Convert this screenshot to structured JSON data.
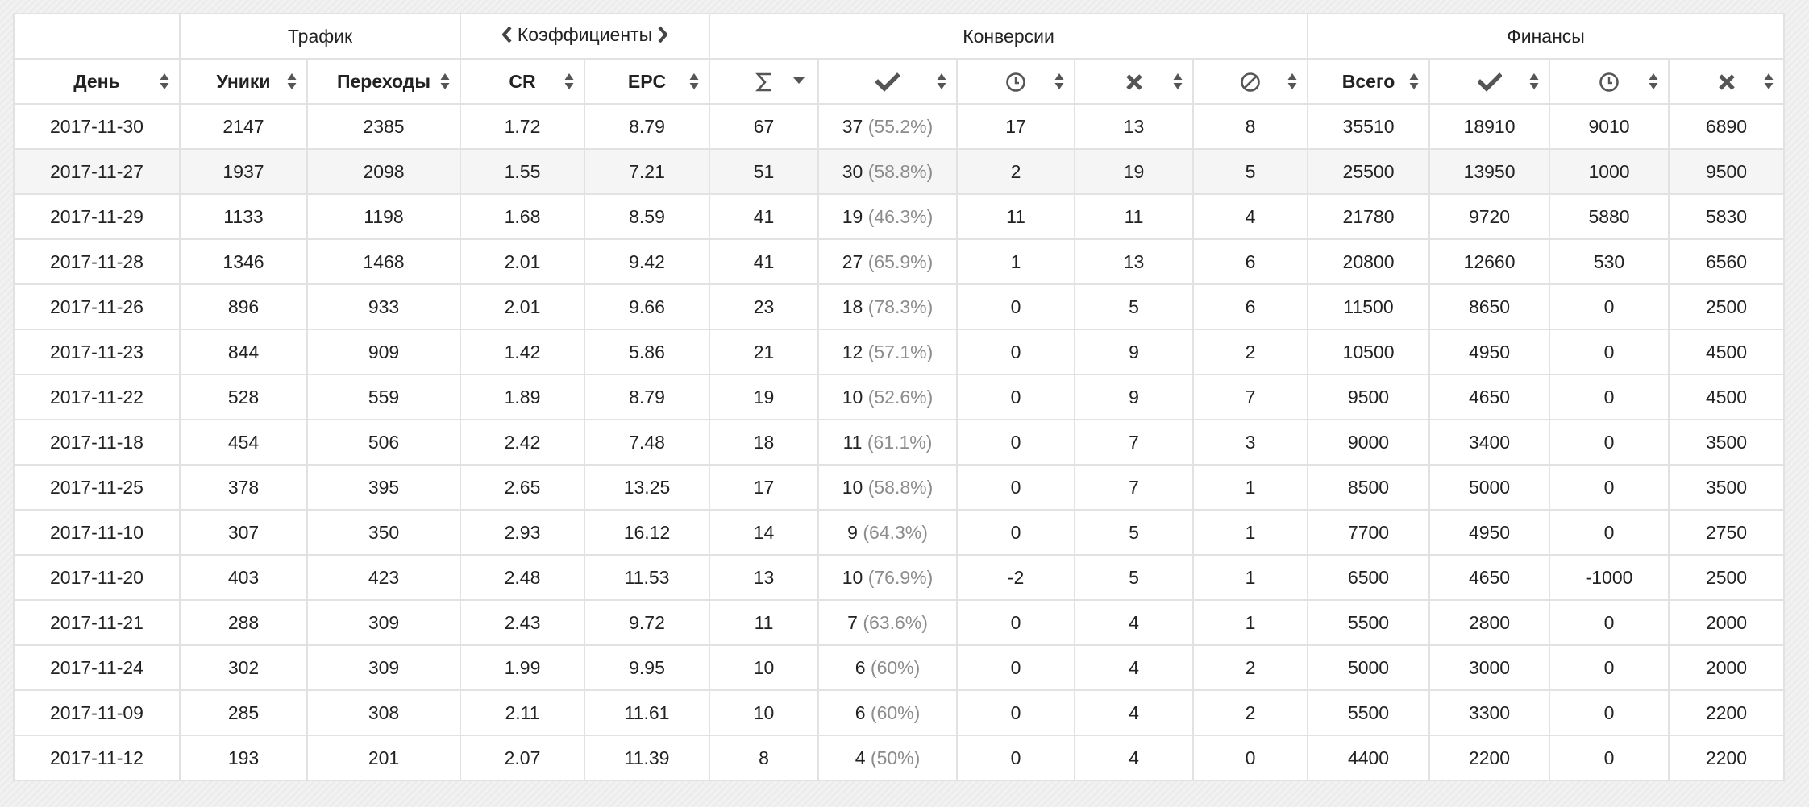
{
  "groups": {
    "traffic": "Трафик",
    "coefficients": "Коэффициенты",
    "conversions": "Конверсии",
    "finance": "Финансы"
  },
  "columns": {
    "day": "День",
    "uniques": "Уники",
    "clicks": "Переходы",
    "cr": "CR",
    "epc": "EPC",
    "conv_total_icon": "sigma-icon",
    "conv_approved_icon": "check-icon",
    "conv_pending_icon": "clock-icon",
    "conv_rejected_icon": "cross-icon",
    "conv_trash_icon": "ban-icon",
    "fin_total": "Всего",
    "fin_approved_icon": "check-icon",
    "fin_pending_icon": "clock-icon",
    "fin_rejected_icon": "cross-icon"
  },
  "rows": [
    {
      "day": "2017-11-30",
      "uniques": "2147",
      "clicks": "2385",
      "cr": "1.72",
      "epc": "8.79",
      "total": "67",
      "approved": "37",
      "approved_pct": "(55.2%)",
      "pending": "17",
      "rejected": "13",
      "trash": "8",
      "fin_total": "35510",
      "fin_approved": "18910",
      "fin_pending": "9010",
      "fin_rejected": "6890"
    },
    {
      "day": "2017-11-27",
      "uniques": "1937",
      "clicks": "2098",
      "cr": "1.55",
      "epc": "7.21",
      "total": "51",
      "approved": "30",
      "approved_pct": "(58.8%)",
      "pending": "2",
      "rejected": "19",
      "trash": "5",
      "fin_total": "25500",
      "fin_approved": "13950",
      "fin_pending": "1000",
      "fin_rejected": "9500"
    },
    {
      "day": "2017-11-29",
      "uniques": "1133",
      "clicks": "1198",
      "cr": "1.68",
      "epc": "8.59",
      "total": "41",
      "approved": "19",
      "approved_pct": "(46.3%)",
      "pending": "11",
      "rejected": "11",
      "trash": "4",
      "fin_total": "21780",
      "fin_approved": "9720",
      "fin_pending": "5880",
      "fin_rejected": "5830"
    },
    {
      "day": "2017-11-28",
      "uniques": "1346",
      "clicks": "1468",
      "cr": "2.01",
      "epc": "9.42",
      "total": "41",
      "approved": "27",
      "approved_pct": "(65.9%)",
      "pending": "1",
      "rejected": "13",
      "trash": "6",
      "fin_total": "20800",
      "fin_approved": "12660",
      "fin_pending": "530",
      "fin_rejected": "6560"
    },
    {
      "day": "2017-11-26",
      "uniques": "896",
      "clicks": "933",
      "cr": "2.01",
      "epc": "9.66",
      "total": "23",
      "approved": "18",
      "approved_pct": "(78.3%)",
      "pending": "0",
      "rejected": "5",
      "trash": "6",
      "fin_total": "11500",
      "fin_approved": "8650",
      "fin_pending": "0",
      "fin_rejected": "2500"
    },
    {
      "day": "2017-11-23",
      "uniques": "844",
      "clicks": "909",
      "cr": "1.42",
      "epc": "5.86",
      "total": "21",
      "approved": "12",
      "approved_pct": "(57.1%)",
      "pending": "0",
      "rejected": "9",
      "trash": "2",
      "fin_total": "10500",
      "fin_approved": "4950",
      "fin_pending": "0",
      "fin_rejected": "4500"
    },
    {
      "day": "2017-11-22",
      "uniques": "528",
      "clicks": "559",
      "cr": "1.89",
      "epc": "8.79",
      "total": "19",
      "approved": "10",
      "approved_pct": "(52.6%)",
      "pending": "0",
      "rejected": "9",
      "trash": "7",
      "fin_total": "9500",
      "fin_approved": "4650",
      "fin_pending": "0",
      "fin_rejected": "4500"
    },
    {
      "day": "2017-11-18",
      "uniques": "454",
      "clicks": "506",
      "cr": "2.42",
      "epc": "7.48",
      "total": "18",
      "approved": "11",
      "approved_pct": "(61.1%)",
      "pending": "0",
      "rejected": "7",
      "trash": "3",
      "fin_total": "9000",
      "fin_approved": "3400",
      "fin_pending": "0",
      "fin_rejected": "3500"
    },
    {
      "day": "2017-11-25",
      "uniques": "378",
      "clicks": "395",
      "cr": "2.65",
      "epc": "13.25",
      "total": "17",
      "approved": "10",
      "approved_pct": "(58.8%)",
      "pending": "0",
      "rejected": "7",
      "trash": "1",
      "fin_total": "8500",
      "fin_approved": "5000",
      "fin_pending": "0",
      "fin_rejected": "3500"
    },
    {
      "day": "2017-11-10",
      "uniques": "307",
      "clicks": "350",
      "cr": "2.93",
      "epc": "16.12",
      "total": "14",
      "approved": "9",
      "approved_pct": "(64.3%)",
      "pending": "0",
      "rejected": "5",
      "trash": "1",
      "fin_total": "7700",
      "fin_approved": "4950",
      "fin_pending": "0",
      "fin_rejected": "2750"
    },
    {
      "day": "2017-11-20",
      "uniques": "403",
      "clicks": "423",
      "cr": "2.48",
      "epc": "11.53",
      "total": "13",
      "approved": "10",
      "approved_pct": "(76.9%)",
      "pending": "-2",
      "rejected": "5",
      "trash": "1",
      "fin_total": "6500",
      "fin_approved": "4650",
      "fin_pending": "-1000",
      "fin_rejected": "2500"
    },
    {
      "day": "2017-11-21",
      "uniques": "288",
      "clicks": "309",
      "cr": "2.43",
      "epc": "9.72",
      "total": "11",
      "approved": "7",
      "approved_pct": "(63.6%)",
      "pending": "0",
      "rejected": "4",
      "trash": "1",
      "fin_total": "5500",
      "fin_approved": "2800",
      "fin_pending": "0",
      "fin_rejected": "2000"
    },
    {
      "day": "2017-11-24",
      "uniques": "302",
      "clicks": "309",
      "cr": "1.99",
      "epc": "9.95",
      "total": "10",
      "approved": "6",
      "approved_pct": "(60%)",
      "pending": "0",
      "rejected": "4",
      "trash": "2",
      "fin_total": "5000",
      "fin_approved": "3000",
      "fin_pending": "0",
      "fin_rejected": "2000"
    },
    {
      "day": "2017-11-09",
      "uniques": "285",
      "clicks": "308",
      "cr": "2.11",
      "epc": "11.61",
      "total": "10",
      "approved": "6",
      "approved_pct": "(60%)",
      "pending": "0",
      "rejected": "4",
      "trash": "2",
      "fin_total": "5500",
      "fin_approved": "3300",
      "fin_pending": "0",
      "fin_rejected": "2200"
    },
    {
      "day": "2017-11-12",
      "uniques": "193",
      "clicks": "201",
      "cr": "2.07",
      "epc": "11.39",
      "total": "8",
      "approved": "4",
      "approved_pct": "(50%)",
      "pending": "0",
      "rejected": "4",
      "trash": "0",
      "fin_total": "4400",
      "fin_approved": "2200",
      "fin_pending": "0",
      "fin_rejected": "2200"
    }
  ],
  "colors": {
    "border": "#e2e2e2",
    "alt_row": "#f5f5f5",
    "muted_text": "#8c8c8c",
    "icon": "#555555"
  }
}
